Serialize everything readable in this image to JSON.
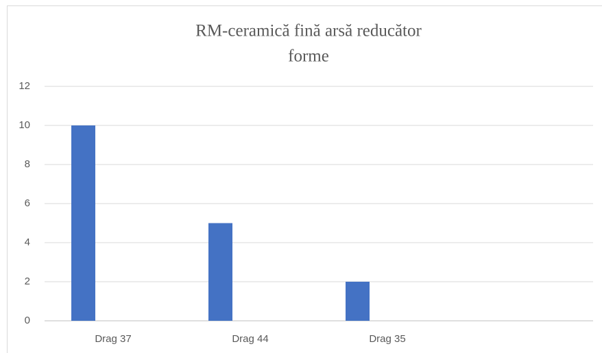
{
  "chart_data": {
    "type": "bar",
    "title": [
      "RM-ceramică fină arsă reducător",
      "forme"
    ],
    "categories": [
      "Drag 37",
      "Drag 44",
      "Drag 35",
      null
    ],
    "values": [
      10,
      5,
      2,
      null
    ],
    "color": "#4472c4",
    "ylim": [
      0,
      12
    ],
    "yticks": [
      0,
      2,
      4,
      6,
      8,
      10,
      12
    ],
    "grid": true
  }
}
